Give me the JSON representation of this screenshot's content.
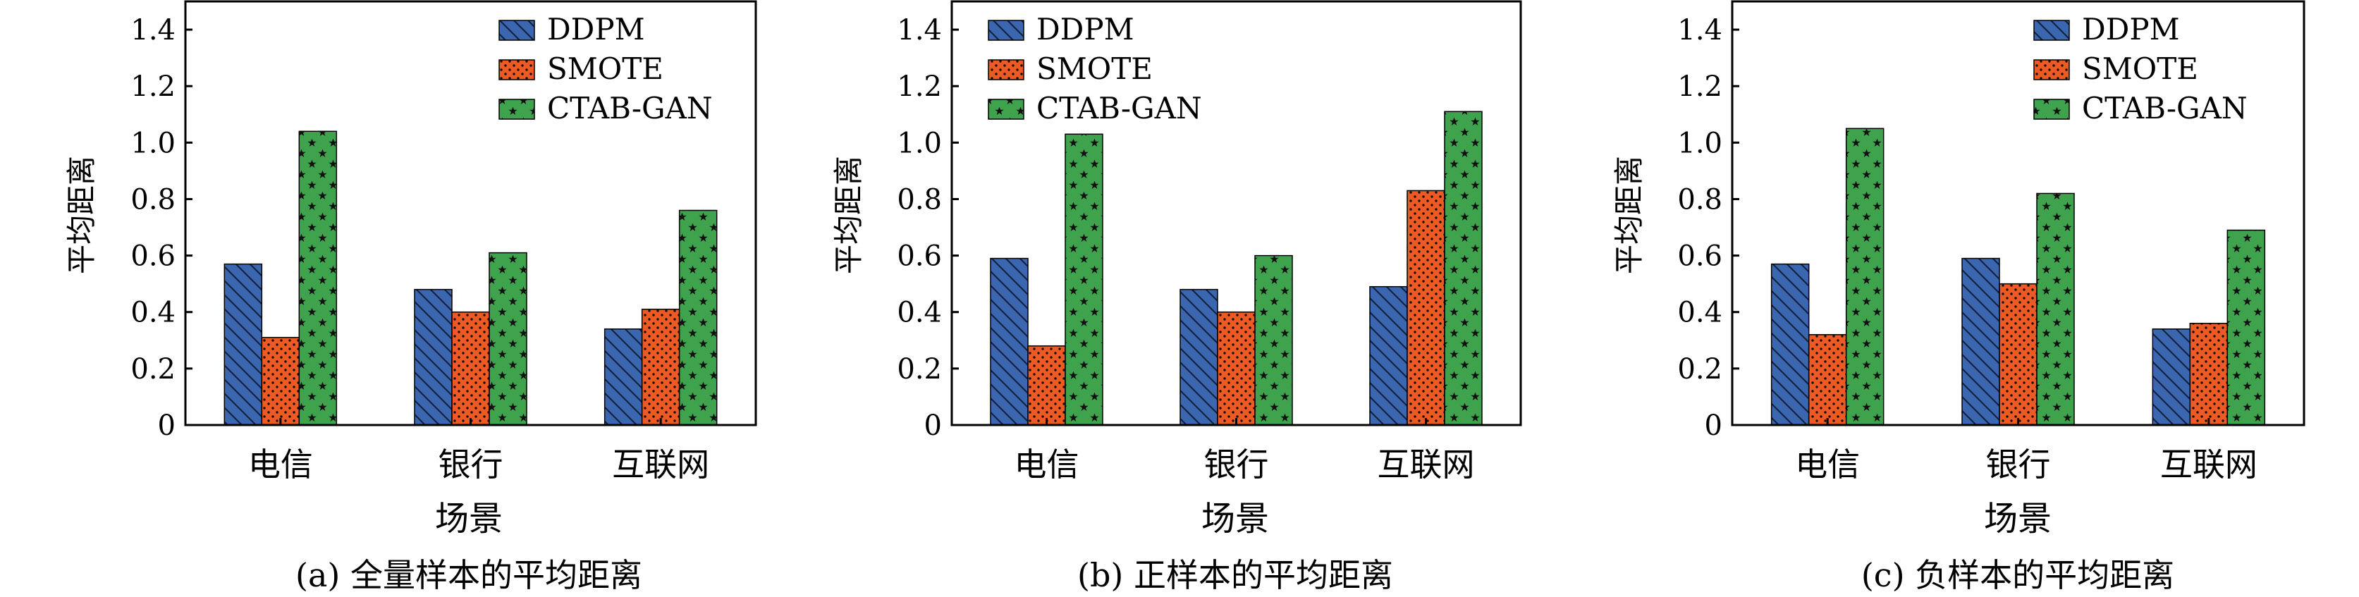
{
  "colors": {
    "DDPM": "#3b67b0",
    "SMOTE": "#ee5a24",
    "CTAB-GAN": "#3fa34d"
  },
  "chart_data": [
    {
      "type": "bar",
      "title": "",
      "caption": "(a)  全量样本的平均距离",
      "xlabel": "场景",
      "ylabel": "平均距离",
      "ylim": [
        0,
        1.5
      ],
      "yticks": [
        0,
        0.2,
        0.4,
        0.6,
        0.8,
        1.0,
        1.2,
        1.4
      ],
      "ytick_labels": [
        "0",
        "0.2",
        "0.4",
        "0.6",
        "0.8",
        "1.0",
        "1.2",
        "1.4"
      ],
      "legend_position": "top-right",
      "grid": false,
      "categories": [
        "电信",
        "银行",
        "互联网"
      ],
      "series": [
        {
          "name": "DDPM",
          "values": [
            0.57,
            0.48,
            0.34
          ]
        },
        {
          "name": "SMOTE",
          "values": [
            0.31,
            0.4,
            0.41
          ]
        },
        {
          "name": "CTAB-GAN",
          "values": [
            1.04,
            0.61,
            0.76
          ]
        }
      ]
    },
    {
      "type": "bar",
      "title": "",
      "caption": "(b)  正样本的平均距离",
      "xlabel": "场景",
      "ylabel": "平均距离",
      "ylim": [
        0,
        1.5
      ],
      "yticks": [
        0,
        0.2,
        0.4,
        0.6,
        0.8,
        1.0,
        1.2,
        1.4
      ],
      "ytick_labels": [
        "0",
        "0.2",
        "0.4",
        "0.6",
        "0.8",
        "1.0",
        "1.2",
        "1.4"
      ],
      "legend_position": "top-left",
      "grid": false,
      "categories": [
        "电信",
        "银行",
        "互联网"
      ],
      "series": [
        {
          "name": "DDPM",
          "values": [
            0.59,
            0.48,
            0.49
          ]
        },
        {
          "name": "SMOTE",
          "values": [
            0.28,
            0.4,
            0.83
          ]
        },
        {
          "name": "CTAB-GAN",
          "values": [
            1.03,
            0.6,
            1.11
          ]
        }
      ]
    },
    {
      "type": "bar",
      "title": "",
      "caption": "(c)  负样本的平均距离",
      "xlabel": "场景",
      "ylabel": "平均距离",
      "ylim": [
        0,
        1.5
      ],
      "yticks": [
        0,
        0.2,
        0.4,
        0.6,
        0.8,
        1.0,
        1.2,
        1.4
      ],
      "ytick_labels": [
        "0",
        "0.2",
        "0.4",
        "0.6",
        "0.8",
        "1.0",
        "1.2",
        "1.4"
      ],
      "legend_position": "top-right",
      "grid": false,
      "categories": [
        "电信",
        "银行",
        "互联网"
      ],
      "series": [
        {
          "name": "DDPM",
          "values": [
            0.57,
            0.59,
            0.34
          ]
        },
        {
          "name": "SMOTE",
          "values": [
            0.32,
            0.5,
            0.36
          ]
        },
        {
          "name": "CTAB-GAN",
          "values": [
            1.05,
            0.82,
            0.69
          ]
        }
      ]
    }
  ]
}
